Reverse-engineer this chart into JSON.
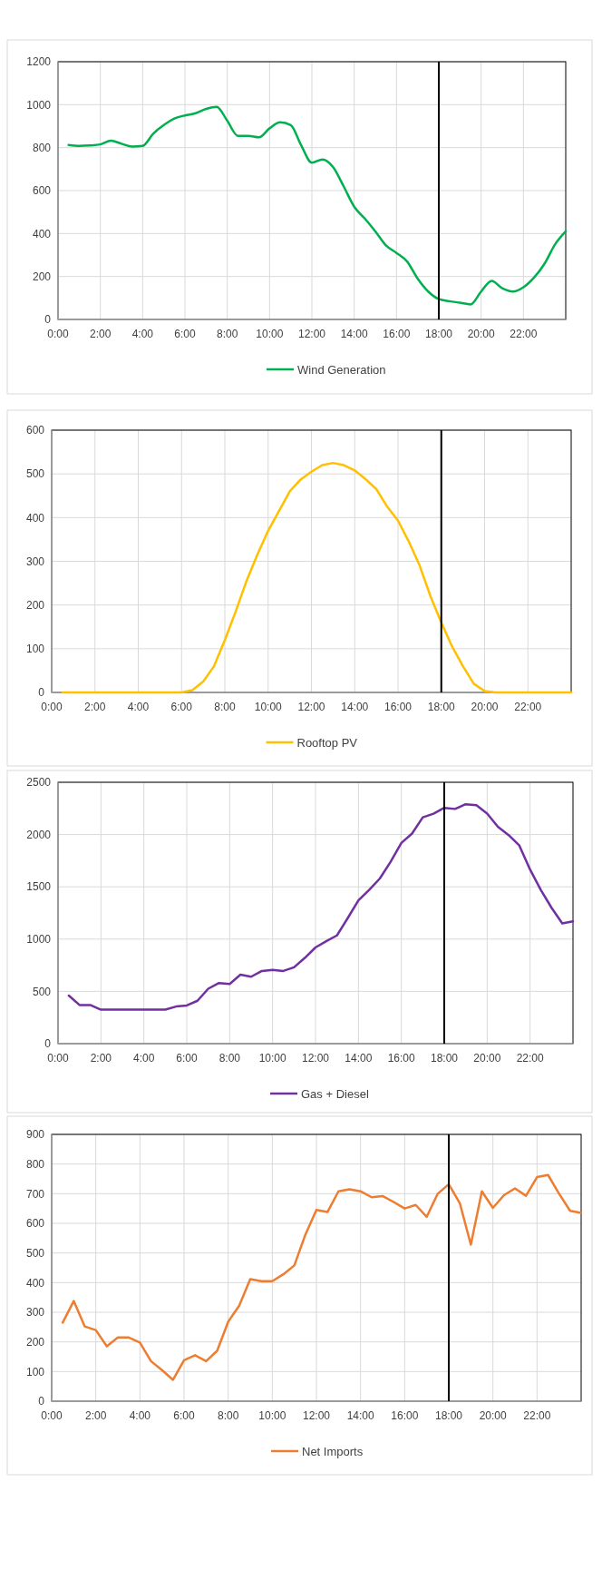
{
  "chart_data": [
    {
      "type": "line",
      "x": [
        0.5,
        1,
        1.5,
        2,
        2.5,
        3,
        3.5,
        4,
        4.5,
        5,
        5.5,
        6,
        6.5,
        7,
        7.5,
        8,
        8.5,
        9,
        9.5,
        10,
        10.5,
        11,
        11.5,
        12,
        12.5,
        13,
        13.5,
        14,
        14.5,
        15,
        15.5,
        16,
        16.5,
        17,
        17.5,
        18,
        18.5,
        19,
        19.5,
        20,
        20.5,
        21,
        21.5,
        22,
        22.5,
        23,
        23.5,
        24
      ],
      "series": [
        {
          "name": "Wind Generation",
          "color": "#00b050",
          "values": [
            812,
            808,
            810,
            815,
            832,
            818,
            805,
            808,
            865,
            905,
            935,
            950,
            960,
            980,
            990,
            925,
            855,
            855,
            848,
            890,
            918,
            905,
            810,
            730,
            745,
            710,
            620,
            525,
            470,
            410,
            345,
            310,
            270,
            190,
            130,
            95,
            85,
            78,
            70,
            130,
            180,
            145,
            130,
            150,
            195,
            260,
            350,
            410
          ]
        }
      ],
      "xlim": [
        0,
        24
      ],
      "xticks": [
        {
          "value": 0,
          "label": "0:00"
        },
        {
          "value": 2,
          "label": "2:00"
        },
        {
          "value": 4,
          "label": "4:00"
        },
        {
          "value": 6,
          "label": "6:00"
        },
        {
          "value": 8,
          "label": "8:00"
        },
        {
          "value": 10,
          "label": "10:00"
        },
        {
          "value": 12,
          "label": "12:00"
        },
        {
          "value": 14,
          "label": "14:00"
        },
        {
          "value": 16,
          "label": "16:00"
        },
        {
          "value": 18,
          "label": "18:00"
        },
        {
          "value": 20,
          "label": "20:00"
        },
        {
          "value": 22,
          "label": "22:00"
        }
      ],
      "ylim": [
        0,
        1200
      ],
      "yticks": [
        0,
        200,
        400,
        600,
        800,
        1000,
        1200
      ],
      "grid": true,
      "legend": "bottom",
      "ref_lines": [
        {
          "axis": "x",
          "value": 18,
          "color": "#000000"
        }
      ]
    },
    {
      "type": "line",
      "x": [
        0.5,
        1,
        1.5,
        2,
        2.5,
        3,
        3.5,
        4,
        4.5,
        5,
        5.5,
        6,
        6.5,
        7,
        7.5,
        8,
        8.5,
        9,
        9.5,
        10,
        10.5,
        11,
        11.5,
        12,
        12.5,
        13,
        13.5,
        14,
        14.5,
        15,
        15.5,
        16,
        16.5,
        17,
        17.5,
        18,
        18.5,
        19,
        19.5,
        20,
        20.5,
        21,
        21.5,
        22,
        22.5,
        23,
        23.5,
        24
      ],
      "series": [
        {
          "name": "Rooftop PV",
          "color": "#ffc000",
          "values": [
            0,
            0,
            0,
            0,
            0,
            0,
            0,
            0,
            0,
            0,
            0,
            0,
            5,
            25,
            60,
            120,
            185,
            255,
            315,
            370,
            415,
            460,
            487,
            505,
            520,
            525,
            520,
            508,
            488,
            465,
            425,
            393,
            345,
            290,
            220,
            160,
            105,
            60,
            20,
            3,
            0,
            0,
            0,
            0,
            0,
            0,
            0,
            0
          ]
        }
      ],
      "xlim": [
        0,
        24
      ],
      "xticks": [
        {
          "value": 0,
          "label": "0:00"
        },
        {
          "value": 2,
          "label": "2:00"
        },
        {
          "value": 4,
          "label": "4:00"
        },
        {
          "value": 6,
          "label": "6:00"
        },
        {
          "value": 8,
          "label": "8:00"
        },
        {
          "value": 10,
          "label": "10:00"
        },
        {
          "value": 12,
          "label": "12:00"
        },
        {
          "value": 14,
          "label": "14:00"
        },
        {
          "value": 16,
          "label": "16:00"
        },
        {
          "value": 18,
          "label": "18:00"
        },
        {
          "value": 20,
          "label": "20:00"
        },
        {
          "value": 22,
          "label": "22:00"
        }
      ],
      "ylim": [
        0,
        600
      ],
      "yticks": [
        0,
        100,
        200,
        300,
        400,
        500,
        600
      ],
      "grid": true,
      "legend": "bottom",
      "ref_lines": [
        {
          "axis": "x",
          "value": 18,
          "color": "#000000"
        }
      ]
    },
    {
      "type": "line",
      "x": [
        0.5,
        1,
        1.5,
        2,
        2.5,
        3,
        3.5,
        4,
        4.5,
        5,
        5.5,
        6,
        6.5,
        7,
        7.5,
        8,
        8.5,
        9,
        9.5,
        10,
        10.5,
        11,
        11.5,
        12,
        12.5,
        13,
        13.5,
        14,
        14.5,
        15,
        15.5,
        16,
        16.5,
        17,
        17.5,
        18,
        18.5,
        19,
        19.5,
        20,
        20.5,
        21,
        21.5,
        22,
        22.5,
        23,
        23.5,
        24
      ],
      "series": [
        {
          "name": "Gas + Diesel",
          "color": "#7030a0",
          "values": [
            460,
            370,
            370,
            325,
            325,
            325,
            325,
            325,
            325,
            325,
            355,
            365,
            410,
            525,
            580,
            570,
            660,
            640,
            695,
            705,
            695,
            730,
            820,
            920,
            980,
            1035,
            1200,
            1370,
            1470,
            1580,
            1740,
            1920,
            2010,
            2165,
            2200,
            2255,
            2245,
            2290,
            2280,
            2200,
            2075,
            1995,
            1895,
            1665,
            1470,
            1300,
            1150,
            1170
          ]
        }
      ],
      "xlim": [
        0,
        24
      ],
      "xticks": [
        {
          "value": 0,
          "label": "0:00"
        },
        {
          "value": 2,
          "label": "2:00"
        },
        {
          "value": 4,
          "label": "4:00"
        },
        {
          "value": 6,
          "label": "6:00"
        },
        {
          "value": 8,
          "label": "8:00"
        },
        {
          "value": 10,
          "label": "10:00"
        },
        {
          "value": 12,
          "label": "12:00"
        },
        {
          "value": 14,
          "label": "14:00"
        },
        {
          "value": 16,
          "label": "16:00"
        },
        {
          "value": 18,
          "label": "18:00"
        },
        {
          "value": 20,
          "label": "20:00"
        },
        {
          "value": 22,
          "label": "22:00"
        }
      ],
      "ylim": [
        0,
        2500
      ],
      "yticks": [
        0,
        500,
        1000,
        1500,
        2000,
        2500
      ],
      "grid": true,
      "legend": "bottom",
      "ref_lines": [
        {
          "axis": "x",
          "value": 18,
          "color": "#000000"
        }
      ]
    },
    {
      "type": "line",
      "x": [
        0.5,
        1,
        1.5,
        2,
        2.5,
        3,
        3.5,
        4,
        4.5,
        5,
        5.5,
        6,
        6.5,
        7,
        7.5,
        8,
        8.5,
        9,
        9.5,
        10,
        10.5,
        11,
        11.5,
        12,
        12.5,
        13,
        13.5,
        14,
        14.5,
        15,
        15.5,
        16,
        16.5,
        17,
        17.5,
        18,
        18.5,
        19,
        19.5,
        20,
        20.5,
        21,
        21.5,
        22,
        22.5,
        23,
        23.5,
        24
      ],
      "series": [
        {
          "name": "Net Imports",
          "color": "#ed7d31",
          "values": [
            265,
            338,
            252,
            240,
            185,
            215,
            215,
            198,
            135,
            105,
            72,
            138,
            155,
            135,
            170,
            268,
            322,
            412,
            405,
            405,
            428,
            458,
            562,
            645,
            638,
            708,
            715,
            708,
            688,
            692,
            672,
            650,
            662,
            622,
            700,
            732,
            668,
            528,
            708,
            652,
            695,
            718,
            693,
            756,
            763,
            700,
            642,
            635
          ]
        }
      ],
      "xlim": [
        0,
        24
      ],
      "xticks": [
        {
          "value": 0,
          "label": "0:00"
        },
        {
          "value": 2,
          "label": "2:00"
        },
        {
          "value": 4,
          "label": "4:00"
        },
        {
          "value": 6,
          "label": "6:00"
        },
        {
          "value": 8,
          "label": "8:00"
        },
        {
          "value": 10,
          "label": "10:00"
        },
        {
          "value": 12,
          "label": "12:00"
        },
        {
          "value": 14,
          "label": "14:00"
        },
        {
          "value": 16,
          "label": "16:00"
        },
        {
          "value": 18,
          "label": "18:00"
        },
        {
          "value": 20,
          "label": "20:00"
        },
        {
          "value": 22,
          "label": "22:00"
        }
      ],
      "ylim": [
        0,
        900
      ],
      "yticks": [
        0,
        100,
        200,
        300,
        400,
        500,
        600,
        700,
        800,
        900
      ],
      "grid": true,
      "legend": "bottom",
      "ref_lines": [
        {
          "axis": "x",
          "value": 18,
          "color": "#000000"
        }
      ]
    }
  ]
}
